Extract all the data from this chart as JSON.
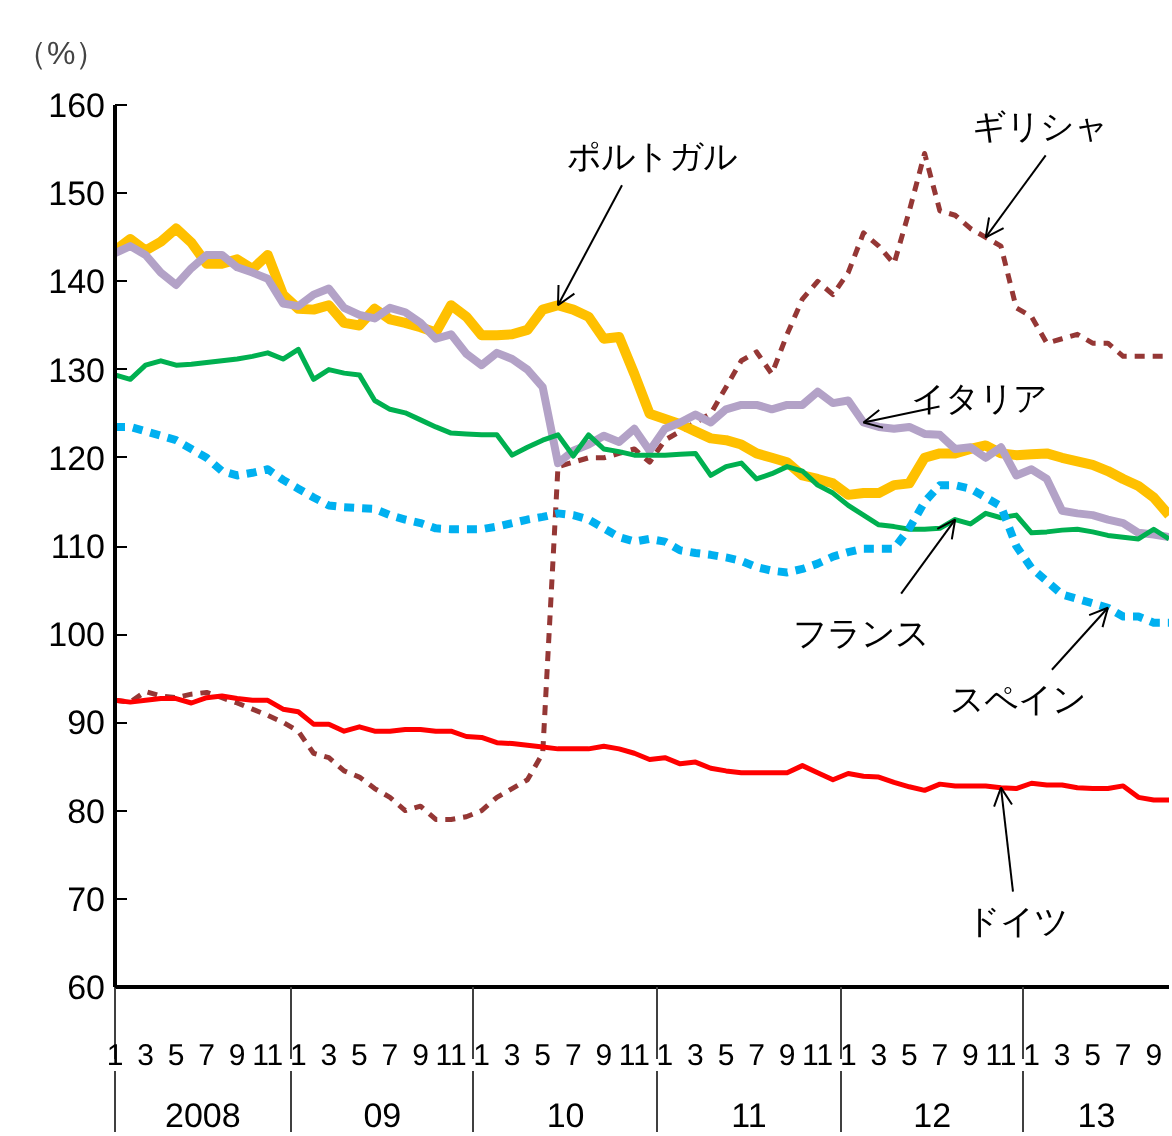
{
  "chart_data": {
    "type": "line",
    "ylabel": "（%）",
    "x": [
      "2008-01",
      "2008-02",
      "2008-03",
      "2008-04",
      "2008-05",
      "2008-06",
      "2008-07",
      "2008-08",
      "2008-09",
      "2008-10",
      "2008-11",
      "2008-12",
      "2009-01",
      "2009-02",
      "2009-03",
      "2009-04",
      "2009-05",
      "2009-06",
      "2009-07",
      "2009-08",
      "2009-09",
      "2009-10",
      "2009-11",
      "2009-12",
      "2010-01",
      "2010-02",
      "2010-03",
      "2010-04",
      "2010-05",
      "2010-06",
      "2010-07",
      "2010-08",
      "2010-09",
      "2010-10",
      "2010-11",
      "2010-12",
      "2011-01",
      "2011-02",
      "2011-03",
      "2011-04",
      "2011-05",
      "2011-06",
      "2011-07",
      "2011-08",
      "2011-09",
      "2011-10",
      "2011-11",
      "2011-12",
      "2012-01",
      "2012-02",
      "2012-03",
      "2012-04",
      "2012-05",
      "2012-06",
      "2012-07",
      "2012-08",
      "2012-09",
      "2012-10",
      "2012-11",
      "2012-12",
      "2013-01",
      "2013-02",
      "2013-03",
      "2013-04",
      "2013-05",
      "2013-06",
      "2013-07",
      "2013-08",
      "2013-09",
      "2013-10"
    ],
    "series": [
      {
        "name": "ギリシャ",
        "color": "#953735",
        "line_style": "dashed",
        "values": [
          92.5,
          92.3,
          93.5,
          93,
          92.8,
          93.2,
          93.4,
          92.8,
          92.2,
          91.5,
          90.8,
          90,
          89,
          86.5,
          86,
          84.5,
          83.8,
          82.5,
          81.5,
          80,
          80.5,
          79,
          79,
          79.3,
          80,
          81.5,
          82.5,
          83.5,
          86.5,
          119,
          119.5,
          120,
          120,
          120.5,
          121,
          119.5,
          122,
          123,
          124,
          125,
          128,
          131,
          132,
          129.5,
          134,
          138,
          140,
          138.5,
          141,
          145.5,
          144,
          142,
          148,
          154.5,
          148,
          147.5,
          146,
          145,
          144,
          137,
          136,
          133,
          133.5,
          134,
          133,
          133,
          131.5,
          131.5,
          131.5,
          131.5
        ]
      },
      {
        "name": "ポルトガル",
        "color": "#ffc000",
        "line_style": "solid",
        "values": [
          143.5,
          144.8,
          143.5,
          144.5,
          146,
          144.4,
          142,
          142,
          142.5,
          141.4,
          143,
          138.5,
          136.9,
          136.8,
          137.3,
          135.3,
          135,
          136.9,
          135.7,
          135.3,
          134.8,
          134.2,
          137.3,
          136,
          133.9,
          133.9,
          134,
          134.5,
          136.8,
          137.3,
          136.8,
          136,
          133.5,
          133.7,
          129.5,
          125,
          124.4,
          123.8,
          123,
          122.2,
          122,
          121.5,
          120.5,
          120,
          119.5,
          118,
          117.6,
          117.1,
          115.8,
          116,
          116,
          116.9,
          117.1,
          120,
          120.5,
          120.5,
          121,
          121.4,
          120.5,
          120.3,
          120.4,
          120.5,
          120,
          119.6,
          119.2,
          118.5,
          117.6,
          116.8,
          115.5,
          113.5
        ]
      },
      {
        "name": "イタリア",
        "color": "#b3a2c7",
        "line_style": "solid",
        "values": [
          143.2,
          144,
          143,
          141,
          139.6,
          141.5,
          143,
          143,
          141.6,
          141,
          140.3,
          137.5,
          137.2,
          138.5,
          139.2,
          137,
          136.2,
          135.8,
          137,
          136.5,
          135.3,
          133.5,
          134,
          131.8,
          130.5,
          131.9,
          131.2,
          130,
          128,
          119.4,
          120.8,
          121.5,
          122.5,
          121.8,
          123.3,
          120.8,
          123.3,
          124,
          124.9,
          124,
          125.5,
          126,
          126,
          125.5,
          126,
          126,
          127.5,
          126.2,
          126.5,
          124,
          123.5,
          123.3,
          123.5,
          122.7,
          122.6,
          121,
          121.2,
          120,
          121.2,
          118,
          118.7,
          117.6,
          114,
          113.7,
          113.5,
          113,
          112.6,
          111.5,
          111.3,
          111
        ]
      },
      {
        "name": "フランス",
        "color": "#00b050",
        "line_style": "solid",
        "values": [
          129.4,
          128.9,
          130.5,
          131,
          130.5,
          130.6,
          130.8,
          131,
          131.2,
          131.5,
          131.9,
          131.2,
          132.3,
          128.9,
          130,
          129.6,
          129.4,
          126.5,
          125.5,
          125.1,
          124.3,
          123.5,
          122.8,
          122.7,
          122.6,
          122.6,
          120.3,
          121.2,
          122,
          122.6,
          120.2,
          122.6,
          121,
          120.7,
          120.3,
          120.3,
          120.3,
          120.4,
          120.5,
          118,
          119,
          119.4,
          117.6,
          118.2,
          119,
          118.5,
          116.9,
          116,
          114.6,
          113.5,
          112.4,
          112.2,
          111.9,
          111.9,
          112,
          113,
          112.5,
          113.7,
          113.2,
          113.5,
          111.5,
          111.6,
          111.8,
          111.9,
          111.6,
          111.2,
          111,
          110.8,
          111.9,
          110.8
        ]
      },
      {
        "name": "スペイン",
        "color": "#00b0f0",
        "line_style": "dashed",
        "values": [
          123.5,
          123.5,
          123,
          122.5,
          122,
          121,
          120,
          118.5,
          118,
          118.3,
          118.7,
          117.5,
          116.5,
          115.5,
          114.6,
          114.4,
          114.3,
          114.2,
          113.5,
          113,
          112.6,
          112,
          111.9,
          111.9,
          111.9,
          112.2,
          112.6,
          113,
          113.3,
          113.7,
          113.5,
          113,
          112,
          111,
          110.5,
          110.8,
          110.5,
          109.5,
          109.2,
          109,
          108.7,
          108.3,
          107.6,
          107.2,
          107,
          107.4,
          108,
          108.8,
          109.3,
          109.7,
          109.7,
          109.7,
          112,
          115,
          116.9,
          116.9,
          116.5,
          115.5,
          114.5,
          110,
          107.5,
          106,
          104.5,
          104,
          103.5,
          103,
          102,
          102,
          101.3,
          101.3
        ]
      },
      {
        "name": "ドイツ",
        "color": "#ff0000",
        "line_style": "solid",
        "values": [
          92.5,
          92.3,
          92.5,
          92.7,
          92.7,
          92.2,
          92.8,
          93,
          92.7,
          92.5,
          92.5,
          91.5,
          91.2,
          89.8,
          89.8,
          89,
          89.5,
          89,
          89,
          89.2,
          89.2,
          89,
          89,
          88.4,
          88.3,
          87.7,
          87.6,
          87.4,
          87.2,
          87,
          87,
          87,
          87.3,
          87,
          86.5,
          85.8,
          86,
          85.3,
          85.5,
          84.8,
          84.5,
          84.3,
          84.3,
          84.3,
          84.3,
          85.1,
          84.3,
          83.5,
          84.2,
          83.9,
          83.8,
          83.2,
          82.7,
          82.3,
          83,
          82.8,
          82.8,
          82.8,
          82.6,
          82.5,
          83.1,
          82.9,
          82.9,
          82.6,
          82.5,
          82.5,
          82.8,
          81.5,
          81.2,
          81.2
        ]
      }
    ],
    "xlim": [
      "2008-01",
      "2013-10"
    ],
    "xticks": [
      {
        "value": "2008-01",
        "label": "1"
      },
      {
        "value": "2008-03",
        "label": "3"
      },
      {
        "value": "2008-05",
        "label": "5"
      },
      {
        "value": "2008-07",
        "label": "7"
      },
      {
        "value": "2008-09",
        "label": "9"
      },
      {
        "value": "2008-11",
        "label": "11"
      },
      {
        "value": "2009-01",
        "label": "1"
      },
      {
        "value": "2009-03",
        "label": "3"
      },
      {
        "value": "2009-05",
        "label": "5"
      },
      {
        "value": "2009-07",
        "label": "7"
      },
      {
        "value": "2009-09",
        "label": "9"
      },
      {
        "value": "2009-11",
        "label": "11"
      },
      {
        "value": "2010-01",
        "label": "1"
      },
      {
        "value": "2010-03",
        "label": "3"
      },
      {
        "value": "2010-05",
        "label": "5"
      },
      {
        "value": "2010-07",
        "label": "7"
      },
      {
        "value": "2010-09",
        "label": "9"
      },
      {
        "value": "2010-11",
        "label": "11"
      },
      {
        "value": "2011-01",
        "label": "1"
      },
      {
        "value": "2011-03",
        "label": "3"
      },
      {
        "value": "2011-05",
        "label": "5"
      },
      {
        "value": "2011-07",
        "label": "7"
      },
      {
        "value": "2011-09",
        "label": "9"
      },
      {
        "value": "2011-11",
        "label": "11"
      },
      {
        "value": "2012-01",
        "label": "1"
      },
      {
        "value": "2012-03",
        "label": "3"
      },
      {
        "value": "2012-05",
        "label": "5"
      },
      {
        "value": "2012-07",
        "label": "7"
      },
      {
        "value": "2012-09",
        "label": "9"
      },
      {
        "value": "2012-11",
        "label": "11"
      },
      {
        "value": "2013-01",
        "label": "1"
      },
      {
        "value": "2013-03",
        "label": "3"
      },
      {
        "value": "2013-05",
        "label": "5"
      },
      {
        "value": "2013-07",
        "label": "7"
      },
      {
        "value": "2013-09",
        "label": "9"
      }
    ],
    "ylim": [
      60,
      160
    ],
    "yticks": [
      60,
      70,
      80,
      90,
      100,
      110,
      120,
      130,
      140,
      150,
      160
    ],
    "annotations": [
      "2008",
      "09",
      "10",
      "11",
      "12",
      "13"
    ],
    "grid": false
  }
}
